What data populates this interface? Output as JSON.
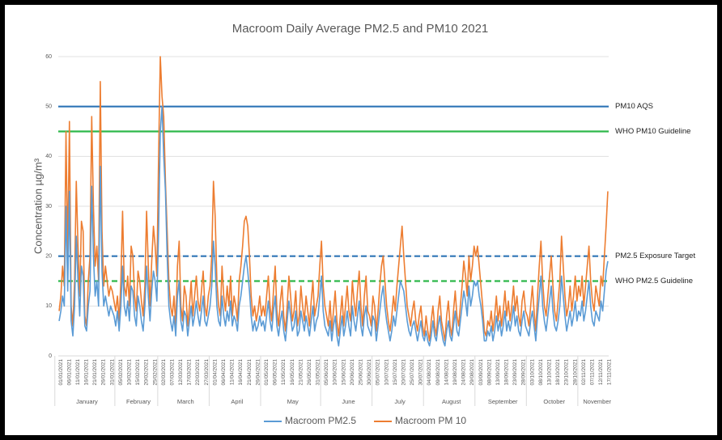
{
  "chart_data": {
    "type": "line",
    "title": "Macroom Daily Average PM2.5 and PM10 2021",
    "ylabel": "Concentration µg/m³",
    "ylim": [
      0,
      60
    ],
    "yticks": [
      0,
      10,
      20,
      30,
      40,
      50,
      60
    ],
    "grid": true,
    "legend": "bottom",
    "months": [
      "January",
      "February",
      "March",
      "April",
      "May",
      "June",
      "July",
      "August",
      "September",
      "October",
      "November"
    ],
    "categories": [
      "01/01/2021",
      null,
      null,
      null,
      null,
      "06/01/2021",
      null,
      null,
      null,
      null,
      "11/01/2021",
      null,
      null,
      null,
      null,
      "16/01/2021",
      null,
      null,
      null,
      null,
      "21/01/2021",
      null,
      null,
      null,
      null,
      "26/01/2021",
      null,
      null,
      null,
      null,
      "31/01/2021",
      null,
      null,
      null,
      null,
      "05/02/2021",
      null,
      null,
      null,
      null,
      "10/02/2021",
      null,
      null,
      null,
      null,
      "15/02/2021",
      null,
      null,
      null,
      null,
      "20/02/2021",
      null,
      null,
      null,
      null,
      "25/02/2021",
      null,
      null,
      null,
      null,
      "02/03/2021",
      null,
      null,
      null,
      null,
      "07/03/2021",
      null,
      null,
      null,
      null,
      "12/03/2021",
      null,
      null,
      null,
      null,
      "17/03/2021",
      null,
      null,
      null,
      null,
      "22/03/2021",
      null,
      null,
      null,
      null,
      "27/03/2021",
      null,
      null,
      null,
      null,
      "01/04/2021",
      null,
      null,
      null,
      null,
      "06/04/2021",
      null,
      null,
      null,
      null,
      "11/04/2021",
      null,
      null,
      null,
      null,
      "16/04/2021",
      null,
      null,
      null,
      null,
      "21/04/2021",
      null,
      null,
      null,
      null,
      "26/04/2021",
      null,
      null,
      null,
      null,
      "01/05/2021",
      null,
      null,
      null,
      null,
      "06/05/2021",
      null,
      null,
      null,
      null,
      "11/05/2021",
      null,
      null,
      null,
      null,
      "16/05/2021",
      null,
      null,
      null,
      null,
      "21/05/2021",
      null,
      null,
      null,
      null,
      "26/05/2021",
      null,
      null,
      null,
      null,
      "31/05/2021",
      null,
      null,
      null,
      null,
      "05/06/2021",
      null,
      null,
      null,
      null,
      "10/06/2021",
      null,
      null,
      null,
      null,
      "15/06/2021",
      null,
      null,
      null,
      null,
      "20/06/2021",
      null,
      null,
      null,
      null,
      "25/06/2021",
      null,
      null,
      null,
      null,
      "30/06/2021",
      null,
      null,
      null,
      null,
      "05/07/2021",
      null,
      null,
      null,
      null,
      "10/07/2021",
      null,
      null,
      null,
      null,
      "15/07/2021",
      null,
      null,
      null,
      null,
      "20/07/2021",
      null,
      null,
      null,
      null,
      "25/07/2021",
      null,
      null,
      null,
      null,
      "30/07/2021",
      null,
      null,
      null,
      null,
      "04/08/2021",
      null,
      null,
      null,
      null,
      "09/08/2021",
      null,
      null,
      null,
      null,
      "14/08/2021",
      null,
      null,
      null,
      null,
      "19/08/2021",
      null,
      null,
      null,
      null,
      "24/08/2021",
      null,
      null,
      null,
      null,
      "29/08/2021",
      null,
      null,
      null,
      null,
      "03/09/2021",
      null,
      null,
      null,
      null,
      "08/09/2021",
      null,
      null,
      null,
      null,
      "13/09/2021",
      null,
      null,
      null,
      null,
      "18/09/2021",
      null,
      null,
      null,
      null,
      "23/09/2021",
      null,
      null,
      null,
      null,
      "28/09/2021",
      null,
      null,
      null,
      null,
      "03/10/2021",
      null,
      null,
      null,
      null,
      "08/10/2021",
      null,
      null,
      null,
      null,
      "13/10/2021",
      null,
      null,
      null,
      null,
      "18/10/2021",
      null,
      null,
      null,
      null,
      "23/10/2021",
      null,
      null,
      null,
      null,
      "28/10/2021",
      null,
      null,
      null,
      null,
      "02/11/2021",
      null,
      null,
      null,
      null,
      "07/11/2021",
      null,
      null,
      null,
      null,
      "12/11/2021",
      null,
      null,
      null,
      null,
      "17/11/2021"
    ],
    "series": [
      {
        "name": "Macroom PM2.5",
        "color": "#5b9bd5",
        "values": [
          7,
          9,
          12,
          10,
          30,
          13,
          33,
          7,
          4,
          10,
          24,
          15,
          8,
          18,
          16,
          6,
          5,
          10,
          13,
          34,
          20,
          12,
          15,
          10,
          38,
          17,
          10,
          12,
          10,
          8,
          10,
          9,
          8,
          6,
          9,
          5,
          10,
          18,
          10,
          8,
          11,
          7,
          14,
          13,
          8,
          6,
          12,
          10,
          7,
          5,
          10,
          18,
          12,
          7,
          13,
          17,
          15,
          11,
          25,
          45,
          50,
          40,
          33,
          20,
          10,
          7,
          5,
          8,
          4,
          12,
          15,
          7,
          5,
          9,
          8,
          4,
          7,
          10,
          6,
          8,
          11,
          8,
          6,
          9,
          12,
          7,
          6,
          8,
          10,
          14,
          23,
          18,
          10,
          7,
          6,
          12,
          8,
          6,
          9,
          7,
          11,
          6,
          8,
          7,
          5,
          10,
          12,
          15,
          18,
          20,
          17,
          13,
          8,
          5,
          7,
          5,
          6,
          8,
          6,
          7,
          5,
          8,
          11,
          7,
          5,
          9,
          12,
          6,
          4,
          7,
          9,
          5,
          3,
          7,
          11,
          8,
          5,
          6,
          9,
          4,
          5,
          9,
          7,
          5,
          8,
          6,
          4,
          7,
          10,
          5,
          7,
          8,
          12,
          16,
          9,
          6,
          5,
          4,
          7,
          3,
          6,
          8,
          4,
          2,
          5,
          8,
          4,
          6,
          9,
          6,
          4,
          10,
          7,
          5,
          8,
          11,
          6,
          4,
          8,
          10,
          6,
          5,
          4,
          8,
          7,
          3,
          6,
          9,
          12,
          14,
          10,
          7,
          5,
          3,
          5,
          8,
          6,
          9,
          12,
          15,
          14,
          13,
          10,
          7,
          5,
          4,
          6,
          7,
          5,
          3,
          5,
          7,
          4,
          3,
          5,
          3,
          2,
          4,
          7,
          4,
          3,
          6,
          8,
          5,
          3,
          2,
          5,
          7,
          4,
          3,
          6,
          9,
          5,
          4,
          7,
          10,
          13,
          11,
          8,
          14,
          10,
          12,
          15,
          14,
          15,
          12,
          10,
          7,
          3,
          3,
          5,
          4,
          6,
          3,
          5,
          8,
          5,
          7,
          4,
          6,
          9,
          5,
          7,
          5,
          7,
          10,
          6,
          8,
          5,
          4,
          7,
          9,
          6,
          5,
          4,
          7,
          9,
          6,
          3,
          8,
          12,
          16,
          10,
          7,
          5,
          8,
          11,
          14,
          9,
          6,
          5,
          7,
          10,
          16,
          12,
          8,
          5,
          7,
          9,
          6,
          8,
          11,
          7,
          9,
          8,
          11,
          7,
          9,
          12,
          15,
          10,
          7,
          6,
          9,
          8,
          7,
          11,
          9,
          13,
          17,
          19
        ]
      },
      {
        "name": "Macroom PM 10",
        "color": "#ed7d31",
        "values": [
          9,
          12,
          18,
          14,
          45,
          20,
          47,
          10,
          6,
          15,
          35,
          22,
          12,
          27,
          25,
          8,
          6,
          15,
          20,
          48,
          30,
          18,
          22,
          15,
          55,
          25,
          14,
          18,
          15,
          12,
          14,
          13,
          11,
          9,
          12,
          7,
          15,
          29,
          14,
          12,
          16,
          10,
          22,
          20,
          12,
          9,
          17,
          15,
          11,
          8,
          14,
          29,
          18,
          10,
          19,
          26,
          22,
          16,
          40,
          60,
          52,
          48,
          35,
          25,
          15,
          10,
          8,
          12,
          6,
          18,
          23,
          10,
          7,
          14,
          12,
          6,
          10,
          15,
          8,
          12,
          16,
          11,
          9,
          13,
          17,
          10,
          8,
          12,
          14,
          20,
          35,
          28,
          15,
          10,
          8,
          18,
          12,
          9,
          14,
          10,
          16,
          8,
          12,
          10,
          7,
          15,
          18,
          22,
          27,
          28,
          26,
          20,
          12,
          8,
          10,
          7,
          9,
          12,
          8,
          10,
          8,
          12,
          16,
          10,
          7,
          13,
          18,
          9,
          6,
          11,
          14,
          8,
          5,
          10,
          16,
          12,
          7,
          9,
          13,
          6,
          8,
          14,
          10,
          7,
          12,
          9,
          6,
          11,
          15,
          8,
          10,
          12,
          18,
          23,
          14,
          10,
          8,
          6,
          11,
          5,
          9,
          13,
          7,
          4,
          8,
          12,
          6,
          10,
          14,
          9,
          7,
          15,
          11,
          8,
          13,
          17,
          10,
          6,
          12,
          16,
          9,
          8,
          6,
          12,
          10,
          5,
          9,
          14,
          18,
          20,
          15,
          10,
          7,
          5,
          8,
          12,
          9,
          14,
          18,
          22,
          26,
          20,
          15,
          10,
          8,
          6,
          9,
          11,
          7,
          5,
          8,
          10,
          6,
          4,
          8,
          5,
          3,
          7,
          10,
          6,
          4,
          9,
          12,
          7,
          5,
          3,
          8,
          11,
          6,
          4,
          9,
          13,
          8,
          6,
          10,
          14,
          19,
          16,
          12,
          20,
          15,
          18,
          22,
          20,
          22,
          18,
          14,
          10,
          5,
          4,
          7,
          6,
          9,
          5,
          8,
          12,
          7,
          10,
          6,
          9,
          13,
          8,
          11,
          7,
          10,
          14,
          9,
          12,
          8,
          6,
          11,
          13,
          9,
          8,
          6,
          10,
          14,
          9,
          5,
          12,
          18,
          23,
          15,
          10,
          8,
          12,
          16,
          20,
          14,
          9,
          7,
          11,
          15,
          24,
          18,
          12,
          8,
          10,
          14,
          9,
          12,
          16,
          11,
          14,
          12,
          16,
          10,
          14,
          18,
          22,
          15,
          11,
          9,
          14,
          12,
          10,
          16,
          14,
          20,
          26,
          33
        ]
      }
    ],
    "reference_lines": [
      {
        "label": "PM10 AQS",
        "value": 50,
        "color": "#2e75b6",
        "dashed": false
      },
      {
        "label": "WHO PM10 Guideline",
        "value": 45,
        "color": "#2eb84a",
        "dashed": false
      },
      {
        "label": "PM2.5 Exposure Target",
        "value": 20,
        "color": "#2e75b6",
        "dashed": true
      },
      {
        "label": "WHO PM2.5 Guideline",
        "value": 15,
        "color": "#2eb84a",
        "dashed": true
      }
    ]
  }
}
